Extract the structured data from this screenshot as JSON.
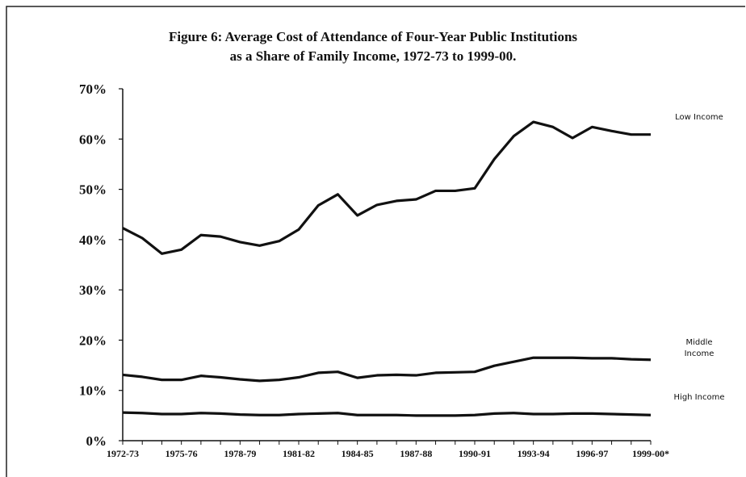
{
  "chart_data": {
    "type": "line",
    "title": "Figure 6: Average Cost of Attendance of Four-Year Public Institutions\nas a Share of Family Income, 1972-73 to 1999-00.",
    "categories": [
      "1972-73",
      null,
      null,
      "1975-76",
      null,
      null,
      "1978-79",
      null,
      null,
      "1981-82",
      null,
      null,
      "1984-85",
      null,
      null,
      "1987-88",
      null,
      null,
      "1990-91",
      null,
      null,
      "1993-94",
      null,
      null,
      "1996-97",
      null,
      null,
      "1999-00*"
    ],
    "series": [
      {
        "name": "Low Income",
        "color": "#111111",
        "values": [
          42.3,
          40.3,
          37.2,
          38.0,
          40.9,
          40.6,
          39.5,
          38.8,
          39.7,
          42.0,
          46.8,
          49.0,
          44.8,
          46.9,
          47.7,
          48.0,
          49.7,
          49.7,
          50.2,
          56.0,
          60.6,
          63.4,
          62.4,
          60.2,
          62.4,
          61.6,
          60.9,
          60.9
        ]
      },
      {
        "name": "Middle Income",
        "color": "#111111",
        "values": [
          13.1,
          12.7,
          12.1,
          12.1,
          12.9,
          12.6,
          12.2,
          11.9,
          12.1,
          12.6,
          13.5,
          13.7,
          12.5,
          13.0,
          13.1,
          13.0,
          13.5,
          13.6,
          13.7,
          14.9,
          15.7,
          16.5,
          16.5,
          16.5,
          16.4,
          16.4,
          16.2,
          16.1
        ]
      },
      {
        "name": "High Income",
        "color": "#111111",
        "values": [
          5.6,
          5.5,
          5.3,
          5.3,
          5.5,
          5.4,
          5.2,
          5.1,
          5.1,
          5.3,
          5.4,
          5.5,
          5.1,
          5.1,
          5.1,
          5.0,
          5.0,
          5.0,
          5.1,
          5.4,
          5.5,
          5.3,
          5.3,
          5.4,
          5.4,
          5.3,
          5.2,
          5.1
        ]
      }
    ],
    "ylim": [
      0,
      70
    ],
    "yticks": [
      {
        "value": 0,
        "label": "0%"
      },
      {
        "value": 10,
        "label": "10%"
      },
      {
        "value": 20,
        "label": "20%"
      },
      {
        "value": 30,
        "label": "30%"
      },
      {
        "value": 40,
        "label": "40%"
      },
      {
        "value": 50,
        "label": "50%"
      },
      {
        "value": 60,
        "label": "60%"
      },
      {
        "value": 70,
        "label": "70%"
      }
    ],
    "grid": false
  }
}
